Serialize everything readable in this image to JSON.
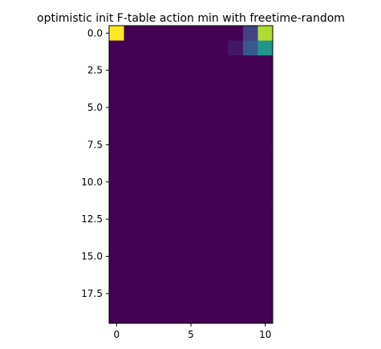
{
  "chart_data": {
    "type": "heatmap",
    "title": "optimistic init F-table action min with freetime-random",
    "xlabel": "",
    "ylabel": "",
    "rows": 20,
    "cols": 11,
    "colormap": "viridis",
    "value_range": [
      0,
      1
    ],
    "x_ticks": [
      0,
      5,
      10
    ],
    "x_tick_labels": [
      "0",
      "5",
      "10"
    ],
    "y_ticks": [
      0.0,
      2.5,
      5.0,
      7.5,
      10.0,
      12.5,
      15.0,
      17.5
    ],
    "y_tick_labels": [
      "0.0",
      "2.5",
      "5.0",
      "7.5",
      "10.0",
      "12.5",
      "15.0",
      "17.5"
    ],
    "values": [
      [
        1.0,
        0,
        0,
        0,
        0,
        0,
        0,
        0,
        0,
        0.2,
        0.88
      ],
      [
        0,
        0,
        0,
        0,
        0,
        0,
        0,
        0,
        0.06,
        0.28,
        0.52
      ],
      [
        0,
        0,
        0,
        0,
        0,
        0,
        0,
        0,
        0,
        0,
        0
      ],
      [
        0,
        0,
        0,
        0,
        0,
        0,
        0,
        0,
        0,
        0,
        0
      ],
      [
        0,
        0,
        0,
        0,
        0,
        0,
        0,
        0,
        0,
        0,
        0
      ],
      [
        0,
        0,
        0,
        0,
        0,
        0,
        0,
        0,
        0,
        0,
        0
      ],
      [
        0,
        0,
        0,
        0,
        0,
        0,
        0,
        0,
        0,
        0,
        0
      ],
      [
        0,
        0,
        0,
        0,
        0,
        0,
        0,
        0,
        0,
        0,
        0
      ],
      [
        0,
        0,
        0,
        0,
        0,
        0,
        0,
        0,
        0,
        0,
        0
      ],
      [
        0,
        0,
        0,
        0,
        0,
        0,
        0,
        0,
        0,
        0,
        0
      ],
      [
        0,
        0,
        0,
        0,
        0,
        0,
        0,
        0,
        0,
        0,
        0
      ],
      [
        0,
        0,
        0,
        0,
        0,
        0,
        0,
        0,
        0,
        0,
        0
      ],
      [
        0,
        0,
        0,
        0,
        0,
        0,
        0,
        0,
        0,
        0,
        0
      ],
      [
        0,
        0,
        0,
        0,
        0,
        0,
        0,
        0,
        0,
        0,
        0
      ],
      [
        0,
        0,
        0,
        0,
        0,
        0,
        0,
        0,
        0,
        0,
        0
      ],
      [
        0,
        0,
        0,
        0,
        0,
        0,
        0,
        0,
        0,
        0,
        0
      ],
      [
        0,
        0,
        0,
        0,
        0,
        0,
        0,
        0,
        0,
        0,
        0
      ],
      [
        0,
        0,
        0,
        0,
        0,
        0,
        0,
        0,
        0,
        0,
        0
      ],
      [
        0,
        0,
        0,
        0,
        0,
        0,
        0,
        0,
        0,
        0,
        0
      ],
      [
        0,
        0,
        0,
        0,
        0,
        0,
        0,
        0,
        0,
        0,
        0
      ]
    ]
  }
}
